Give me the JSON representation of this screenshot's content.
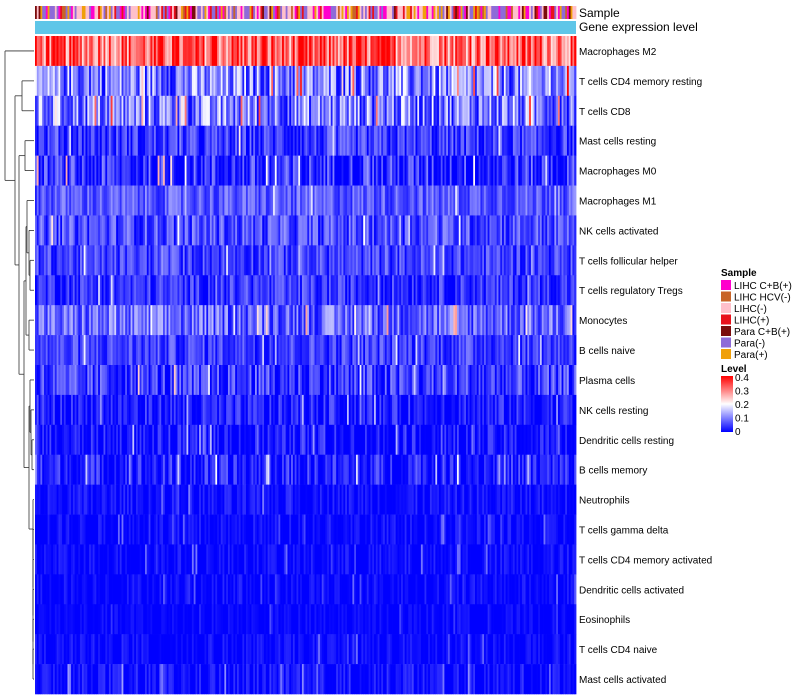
{
  "chart_data": {
    "type": "heatmap",
    "title": "",
    "annotation_tracks": [
      {
        "name": "Sample",
        "type": "categorical"
      },
      {
        "name": "Gene expression level",
        "type": "continuous"
      }
    ],
    "rows": [
      {
        "label": "Macrophages M2",
        "mean": 0.32,
        "spread": 0.1
      },
      {
        "label": "T cells CD4 memory resting",
        "mean": 0.1,
        "spread": 0.1
      },
      {
        "label": "T cells CD8",
        "mean": 0.1,
        "spread": 0.1
      },
      {
        "label": "Mast cells resting",
        "mean": 0.04,
        "spread": 0.06
      },
      {
        "label": "Macrophages M0",
        "mean": 0.03,
        "spread": 0.08
      },
      {
        "label": "Macrophages M1",
        "mean": 0.07,
        "spread": 0.05
      },
      {
        "label": "NK cells activated",
        "mean": 0.06,
        "spread": 0.06
      },
      {
        "label": "T cells follicular helper",
        "mean": 0.05,
        "spread": 0.05
      },
      {
        "label": "T cells regulatory  Tregs",
        "mean": 0.04,
        "spread": 0.05
      },
      {
        "label": "Monocytes",
        "mean": 0.08,
        "spread": 0.07
      },
      {
        "label": "B cells naive",
        "mean": 0.05,
        "spread": 0.05
      },
      {
        "label": "Plasma cells",
        "mean": 0.04,
        "spread": 0.07
      },
      {
        "label": "NK cells resting",
        "mean": 0.02,
        "spread": 0.05
      },
      {
        "label": "Dendritic cells resting",
        "mean": 0.01,
        "spread": 0.05
      },
      {
        "label": "B cells memory",
        "mean": 0.02,
        "spread": 0.06
      },
      {
        "label": "Neutrophils",
        "mean": 0.01,
        "spread": 0.03
      },
      {
        "label": "T cells gamma delta",
        "mean": 0.005,
        "spread": 0.03
      },
      {
        "label": "T cells CD4 memory activated",
        "mean": 0.005,
        "spread": 0.03
      },
      {
        "label": "Dendritic cells activated",
        "mean": 0.003,
        "spread": 0.03
      },
      {
        "label": "Eosinophils",
        "mean": 0.002,
        "spread": 0.02
      },
      {
        "label": "T cells CD4 naive",
        "mean": 0.003,
        "spread": 0.03
      },
      {
        "label": "Mast cells activated",
        "mean": 0.005,
        "spread": 0.04
      }
    ],
    "n_columns": 300,
    "legends": {
      "sample": {
        "title": "Sample",
        "entries": [
          {
            "label": "LIHC C+B(+)",
            "color": "#ff00cc",
            "weight": 0.2
          },
          {
            "label": "LIHC HCV(-)",
            "color": "#c86428",
            "weight": 0.05
          },
          {
            "label": "LIHC(-)",
            "color": "#ffc0cb",
            "weight": 0.25
          },
          {
            "label": "LIHC(+)",
            "color": "#e8111b",
            "weight": 0.12
          },
          {
            "label": "Para C+B(+)",
            "color": "#7a0c0c",
            "weight": 0.05
          },
          {
            "label": "Para(-)",
            "color": "#8e6bd8",
            "weight": 0.2
          },
          {
            "label": "Para(+)",
            "color": "#f0a00a",
            "weight": 0.13
          }
        ]
      },
      "level": {
        "title": "Level",
        "ticks": [
          "0.4",
          "0.3",
          "0.2",
          "0.1",
          "0"
        ],
        "range": [
          0,
          0.4
        ],
        "low_color": "#0000ff",
        "mid_color": "#ffffff",
        "high_color": "#ff0000"
      }
    },
    "expression_track_color": "#5fc6e8",
    "dendrogram_color": "#333333"
  }
}
